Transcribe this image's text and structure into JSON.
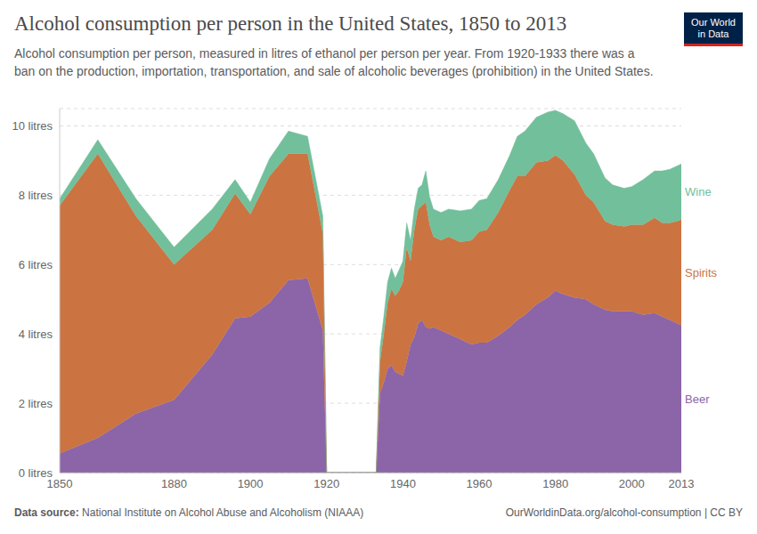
{
  "chart_data": {
    "type": "area",
    "title": "Alcohol consumption per person in the United States, 1850 to 2013",
    "subtitle": "Alcohol consumption per person, measured in litres of ethanol per person per year. From 1920-1933 there was a ban on the production, importation, transportation, and sale of alcoholic beverages (prohibition) in the United States.",
    "logo": [
      "Our World",
      "in Data"
    ],
    "source_label": "Data source:",
    "source": "National Institute on Alcohol Abuse and Alcoholism (NIAAA)",
    "footer_right": "OurWorldinData.org/alcohol-consumption | CC BY",
    "stacked": true,
    "grid": true,
    "x": [
      1850,
      1860,
      1870,
      1880,
      1890,
      1896,
      1900,
      1905,
      1910,
      1915,
      1919,
      1920,
      1933,
      1934,
      1935,
      1936,
      1937,
      1938,
      1939,
      1940,
      1941,
      1942,
      1943,
      1944,
      1945,
      1946,
      1947,
      1948,
      1950,
      1952,
      1955,
      1958,
      1960,
      1962,
      1965,
      1968,
      1970,
      1972,
      1975,
      1978,
      1980,
      1982,
      1985,
      1988,
      1990,
      1993,
      1995,
      1998,
      2000,
      2003,
      2006,
      2008,
      2010,
      2012,
      2013
    ],
    "xlim": [
      1850,
      2013
    ],
    "xticks": [
      1850,
      1880,
      1900,
      1920,
      1940,
      1960,
      1980,
      2000,
      2013
    ],
    "ylim": [
      0,
      10.5
    ],
    "yticks": [
      {
        "value": 0,
        "label": "0 litres"
      },
      {
        "value": 2,
        "label": "2 litres"
      },
      {
        "value": 4,
        "label": "4 litres"
      },
      {
        "value": 6,
        "label": "6 litres"
      },
      {
        "value": 8,
        "label": "8 litres"
      },
      {
        "value": 10,
        "label": "10 litres"
      }
    ],
    "series": [
      {
        "name": "Beer",
        "color": "#8c65a8",
        "values": [
          0.55,
          1.0,
          1.7,
          2.1,
          3.4,
          4.45,
          4.5,
          4.9,
          5.55,
          5.6,
          4.1,
          0,
          0,
          2.3,
          2.6,
          3.0,
          3.1,
          2.9,
          2.85,
          2.8,
          3.2,
          3.7,
          3.9,
          4.3,
          4.4,
          4.2,
          4.15,
          4.2,
          4.1,
          4.0,
          3.85,
          3.7,
          3.75,
          3.75,
          3.95,
          4.2,
          4.4,
          4.55,
          4.85,
          5.05,
          5.25,
          5.15,
          5.05,
          5.0,
          4.85,
          4.7,
          4.65,
          4.65,
          4.65,
          4.55,
          4.6,
          4.5,
          4.4,
          4.3,
          4.25
        ]
      },
      {
        "name": "Spirits",
        "color": "#cb7441",
        "values": [
          7.15,
          8.2,
          5.7,
          3.9,
          3.6,
          3.6,
          2.95,
          3.65,
          3.65,
          3.6,
          2.8,
          0,
          0,
          0.9,
          1.4,
          1.9,
          2.2,
          2.2,
          2.4,
          2.7,
          3.3,
          2.4,
          3.1,
          3.3,
          3.3,
          3.6,
          3.0,
          2.6,
          2.6,
          2.8,
          2.8,
          3.0,
          3.2,
          3.25,
          3.55,
          3.95,
          4.15,
          4.0,
          4.1,
          3.95,
          3.9,
          3.85,
          3.55,
          3.0,
          2.95,
          2.55,
          2.5,
          2.45,
          2.5,
          2.6,
          2.75,
          2.7,
          2.8,
          2.95,
          3.05
        ]
      },
      {
        "name": "Wine",
        "color": "#72bf9b",
        "values": [
          0.2,
          0.4,
          0.5,
          0.5,
          0.6,
          0.4,
          0.35,
          0.5,
          0.65,
          0.5,
          0.5,
          0,
          0,
          0.4,
          0.5,
          0.6,
          0.6,
          0.5,
          0.6,
          0.6,
          0.7,
          0.6,
          0.6,
          0.6,
          0.6,
          0.9,
          0.8,
          0.8,
          0.8,
          0.8,
          0.9,
          0.9,
          0.9,
          0.9,
          0.95,
          1.0,
          1.15,
          1.3,
          1.3,
          1.4,
          1.3,
          1.35,
          1.55,
          1.5,
          1.4,
          1.25,
          1.15,
          1.1,
          1.1,
          1.3,
          1.35,
          1.5,
          1.55,
          1.6,
          1.6
        ]
      }
    ]
  }
}
